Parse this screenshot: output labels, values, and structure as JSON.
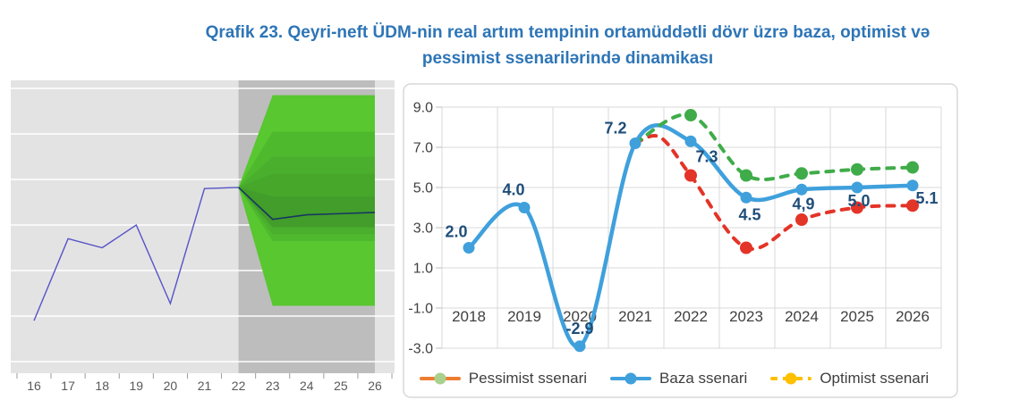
{
  "title": {
    "line1": "Qrafik 23. Qeyri-neft ÜDM-nin real artım tempinin ortamüddətli dövr üzrə baza, optimist və",
    "line2": "pessimist ssenarilərində dinamikası",
    "color": "#2E75B6"
  },
  "chart_data": [
    {
      "type": "area",
      "subtype": "fan-chart",
      "title": "",
      "xlabels": [
        "16",
        "17",
        "18",
        "19",
        "20",
        "21",
        "22",
        "23",
        "24",
        "25",
        "26"
      ],
      "history_x": [
        16,
        17,
        18,
        19,
        20,
        21,
        22
      ],
      "history_values": [
        -4.4,
        2.8,
        2.0,
        4.0,
        -2.9,
        7.2,
        7.3
      ],
      "forecast_x": [
        22,
        23,
        24,
        25,
        26
      ],
      "forecast_values": [
        7.3,
        4.5,
        4.9,
        5.0,
        5.1
      ],
      "forecast_start": 22,
      "gridline_values": [
        16,
        12,
        8,
        4,
        0,
        -4,
        -8
      ],
      "ylim": [
        -9.2,
        16.7
      ],
      "fan_bands": [
        {
          "top": 15.4,
          "bottom": -3.1,
          "color": "#58C730"
        },
        {
          "top": 12.2,
          "bottom": 2.6,
          "color": "#4FB92E"
        },
        {
          "top": 10.0,
          "bottom": 3.2,
          "color": "#4AAF2D"
        },
        {
          "top": 8.5,
          "bottom": 3.8,
          "color": "#46A72B"
        },
        {
          "top": 6.5,
          "bottom": 3.8,
          "color": "#429D2A"
        }
      ],
      "colors": {
        "plot_bg": "#E3E3E3",
        "forecast_bg": "#BDBDBD",
        "gridline": "#FFFFFF",
        "history_line": "#5652C8",
        "forecast_line": "#173760",
        "tick": "#9B9B9B",
        "axis_text": "#595959"
      }
    },
    {
      "type": "line",
      "categories": [
        "2018",
        "2019",
        "2020",
        "2021",
        "2022",
        "2023",
        "2024",
        "2025",
        "2026"
      ],
      "yticks": [
        "9.0",
        "7.0",
        "5.0",
        "3.0",
        "1.0",
        "-1.0",
        "-3.0"
      ],
      "ytick_values": [
        9,
        7,
        5,
        3,
        1,
        -1,
        -3
      ],
      "ylim": [
        -3,
        9
      ],
      "series": [
        {
          "name": "Pessimist ssenari (red dashed)",
          "points": [
            [
              2021,
              7.2
            ],
            [
              2021.45,
              7.5
            ],
            [
              2022,
              5.6
            ],
            [
              2023,
              2.0
            ],
            [
              2024,
              3.4
            ],
            [
              2025,
              4.0
            ],
            [
              2026,
              4.1
            ]
          ],
          "marker_points": [
            [
              2022,
              5.6
            ],
            [
              2023,
              2.0
            ],
            [
              2024,
              3.4
            ],
            [
              2025,
              4.0
            ],
            [
              2026,
              4.1
            ]
          ],
          "color": "#E33428",
          "style": "dashed"
        },
        {
          "name": "Baza ssenari",
          "points": [
            [
              2018,
              2.0
            ],
            [
              2019,
              4.0
            ],
            [
              2020,
              -2.9
            ],
            [
              2021,
              7.2
            ],
            [
              2022,
              7.3
            ],
            [
              2023,
              4.5
            ],
            [
              2024,
              4.9
            ],
            [
              2025,
              5.0
            ],
            [
              2026,
              5.1
            ]
          ],
          "marker_points": [
            [
              2018,
              2.0
            ],
            [
              2019,
              4.0
            ],
            [
              2020,
              -2.9
            ],
            [
              2021,
              7.2
            ],
            [
              2022,
              7.3
            ],
            [
              2023,
              4.5
            ],
            [
              2024,
              4.9
            ],
            [
              2025,
              5.0
            ],
            [
              2026,
              5.1
            ]
          ],
          "labels": [
            "2.0",
            "4.0",
            "-2.9",
            "7.2",
            "7.3",
            "4.5",
            "4,9",
            "5.0",
            "5.1"
          ],
          "label_offsets": [
            [
              -14,
              -12
            ],
            [
              -12,
              -14
            ],
            [
              0,
              -14
            ],
            [
              -22,
              -11
            ],
            [
              18,
              23
            ],
            [
              4,
              25
            ],
            [
              2,
              22
            ],
            [
              2,
              21
            ],
            [
              16,
              20
            ]
          ],
          "color": "#3FA0DC",
          "style": "solid"
        },
        {
          "name": "Optimist ssenari (green dashed)",
          "points": [
            [
              2021,
              7.2
            ],
            [
              2022,
              8.6
            ],
            [
              2023,
              5.6
            ],
            [
              2024,
              5.7
            ],
            [
              2025,
              5.9
            ],
            [
              2026,
              6.0
            ]
          ],
          "marker_points": [
            [
              2022,
              8.6
            ],
            [
              2023,
              5.6
            ],
            [
              2024,
              5.7
            ],
            [
              2025,
              5.9
            ],
            [
              2026,
              6.0
            ]
          ],
          "color": "#3FAC49",
          "style": "dashed"
        }
      ],
      "label_color": "#1F4E79",
      "axis_text_color": "#404040",
      "gridline_color": "#D9D9D9",
      "frame_color": "#D8D8D8",
      "legend_items": [
        {
          "label": "Pessimist ssenari",
          "line_color": "#ED7D31",
          "marker_color": "#A9D18E",
          "dash": false
        },
        {
          "label": "Baza ssenari",
          "line_color": "#3FA0DC",
          "marker_color": "#3FA0DC",
          "dash": false
        },
        {
          "label": "Optimist ssenari",
          "line_color": "#FFC000",
          "marker_color": "#FFC000",
          "dash": true
        }
      ]
    }
  ]
}
